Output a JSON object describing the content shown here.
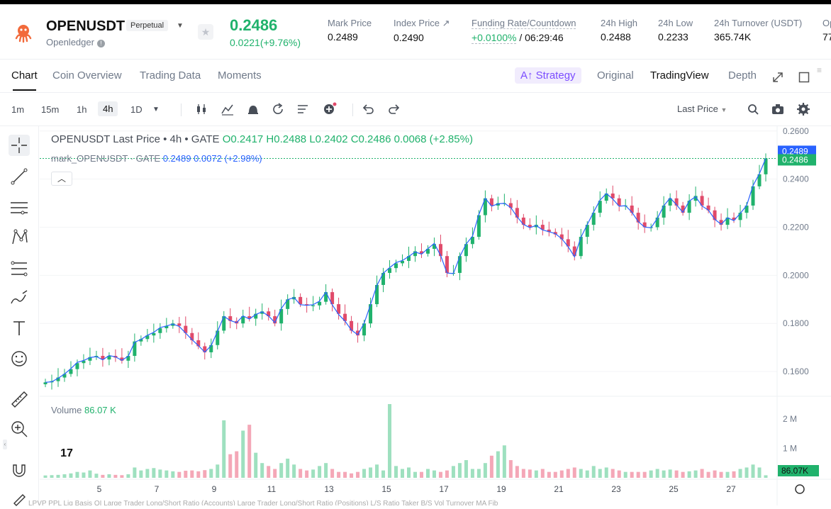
{
  "header": {
    "symbol": "OPENUSDT",
    "contract_type": "Perpetual",
    "project": "Openledger",
    "last_price": "0.2486",
    "change": "0.0221(+9.76%)",
    "stats": [
      {
        "label": "Mark Price",
        "value": "0.2489"
      },
      {
        "label": "Index Price ↗",
        "value": "0.2490"
      },
      {
        "label": "Funding Rate/Countdown",
        "value_rate": "+0.0100%",
        "value_countdown": "/ 06:29:46"
      },
      {
        "label": "24h High",
        "value": "0.2488"
      },
      {
        "label": "24h Low",
        "value": "0.2233"
      },
      {
        "label": "24h Turnover (USDT)",
        "value": "365.74K"
      },
      {
        "label": "Op",
        "value": "77"
      }
    ]
  },
  "tabs": [
    "Chart",
    "Coin Overview",
    "Trading Data",
    "Moments"
  ],
  "view_options": {
    "strategy": "A↑ Strategy",
    "original": "Original",
    "tradingview": "TradingView",
    "depth": "Depth"
  },
  "timeframes": [
    "1m",
    "15m",
    "1h",
    "4h",
    "1D"
  ],
  "active_timeframe": "4h",
  "price_type": "Last Price",
  "legend": {
    "line1_prefix": "OPENUSDT Last Price • 4h • GATE",
    "o": "O0.2417",
    "h": "H0.2488",
    "l": "L0.2402",
    "c": "C0.2486",
    "chg": "0.0068 (+2.85%)",
    "line2_prefix": "mark_OPENUSDT · GATE",
    "mark_value": "0.2489",
    "mark_chg": "0.0072 (+2.98%)"
  },
  "volume_legend": {
    "label": "Volume",
    "value": "86.07 K"
  },
  "colors": {
    "up": "#20b26c",
    "down": "#e04a6a",
    "mark_line": "#2962ff",
    "vol_up": "#9ee0bf",
    "vol_down": "#f4a7b7"
  },
  "chart_data": {
    "type": "candlestick",
    "title": "OPENUSDT Last Price • 4h • GATE",
    "ylim": [
      0.15,
      0.262
    ],
    "y_ticks": [
      "0.2600",
      "0.2400",
      "0.2200",
      "0.2000",
      "0.1800",
      "0.1600"
    ],
    "x_ticks": [
      "5",
      "7",
      "9",
      "11",
      "13",
      "15",
      "17",
      "19",
      "21",
      "23",
      "25",
      "27"
    ],
    "price_markers": {
      "mark": "0.2489",
      "last": "0.2486"
    },
    "volume_ticks": [
      "2 M",
      "1 M"
    ],
    "volume_last": "86.07K",
    "close_path": [
      0.1555,
      0.156,
      0.1575,
      0.159,
      0.161,
      0.1635,
      0.1645,
      0.166,
      0.1665,
      0.165,
      0.1665,
      0.1658,
      0.1645,
      0.1665,
      0.1725,
      0.1735,
      0.175,
      0.176,
      0.178,
      0.179,
      0.18,
      0.179,
      0.176,
      0.173,
      0.1705,
      0.168,
      0.171,
      0.177,
      0.183,
      0.181,
      0.18,
      0.183,
      0.182,
      0.184,
      0.185,
      0.183,
      0.18,
      0.186,
      0.19,
      0.191,
      0.188,
      0.1875,
      0.1875,
      0.189,
      0.193,
      0.188,
      0.184,
      0.181,
      0.177,
      0.175,
      0.18,
      0.188,
      0.196,
      0.201,
      0.203,
      0.205,
      0.206,
      0.208,
      0.21,
      0.209,
      0.211,
      0.213,
      0.208,
      0.201,
      0.201,
      0.208,
      0.213,
      0.216,
      0.225,
      0.232,
      0.229,
      0.23,
      0.23,
      0.228,
      0.224,
      0.221,
      0.22,
      0.221,
      0.219,
      0.218,
      0.217,
      0.215,
      0.212,
      0.208,
      0.216,
      0.221,
      0.226,
      0.231,
      0.234,
      0.232,
      0.229,
      0.229,
      0.226,
      0.222,
      0.22,
      0.22,
      0.224,
      0.229,
      0.232,
      0.229,
      0.226,
      0.231,
      0.233,
      0.229,
      0.227,
      0.223,
      0.221,
      0.224,
      0.223,
      0.226,
      0.229,
      0.237,
      0.242,
      0.2486
    ],
    "volume": [
      0.08,
      0.09,
      0.1,
      0.12,
      0.15,
      0.2,
      0.18,
      0.25,
      0.14,
      0.1,
      0.12,
      0.1,
      0.09,
      0.12,
      0.35,
      0.25,
      0.3,
      0.33,
      0.28,
      0.25,
      0.22,
      0.2,
      0.24,
      0.25,
      0.22,
      0.26,
      0.3,
      0.45,
      1.95,
      0.8,
      0.9,
      1.6,
      1.8,
      0.85,
      0.5,
      0.4,
      0.3,
      0.5,
      0.65,
      0.45,
      0.3,
      0.25,
      0.28,
      0.4,
      0.5,
      0.3,
      0.2,
      0.2,
      0.15,
      0.2,
      0.3,
      0.35,
      0.45,
      0.25,
      2.5,
      0.4,
      0.3,
      0.35,
      0.2,
      0.2,
      0.3,
      0.25,
      0.2,
      0.25,
      0.4,
      0.5,
      0.6,
      0.3,
      0.3,
      0.5,
      0.75,
      0.9,
      1.1,
      0.6,
      0.4,
      0.3,
      0.28,
      0.25,
      0.3,
      0.2,
      0.2,
      0.25,
      0.3,
      0.35,
      0.3,
      0.25,
      0.4,
      0.3,
      0.35,
      0.3,
      0.25,
      0.2,
      0.2,
      0.2,
      0.2,
      0.25,
      0.3,
      0.25,
      0.28,
      0.25,
      0.2,
      0.22,
      0.25,
      0.3,
      0.2,
      0.25,
      0.2,
      0.2,
      0.22,
      0.3,
      0.35,
      0.45,
      0.35,
      0.086
    ]
  },
  "bottom_strip": "LPVP  PPL  Liq  Basis  OI  Large Trader Long/Short Ratio (Accounts)  Large Trader Long/Short Ratio (Positions)  L/S Ratio  Taker B/S Vol  Turnover  MA  Fib"
}
